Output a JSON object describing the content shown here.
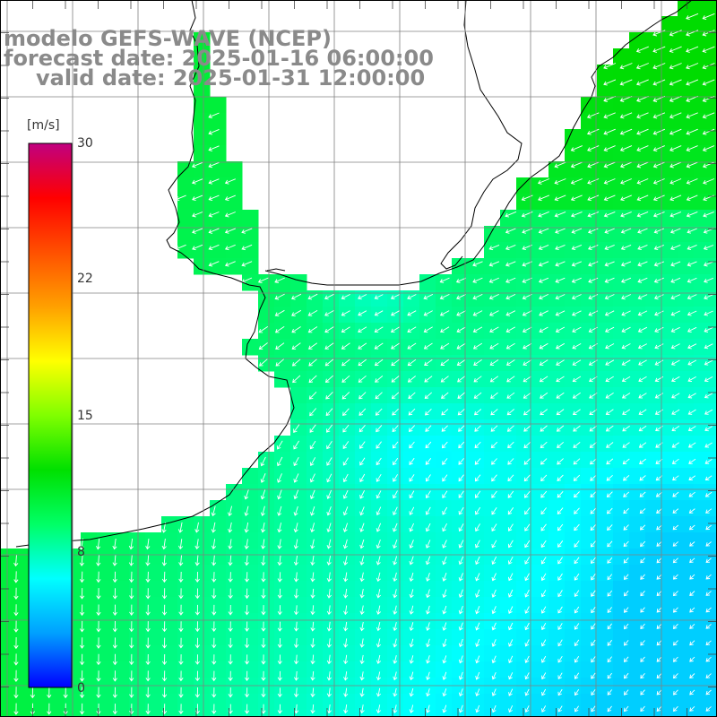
{
  "title": {
    "model": "modelo GEFS-WAVE (NCEP)",
    "forecast": "forecast date: 2025-01-16 06:00:00",
    "valid": "valid date: 2025-01-31 12:00:00"
  },
  "colorbar": {
    "unit": "[m/s]",
    "min": 0,
    "max": 30,
    "ticks": [
      "30",
      "22",
      "15",
      "8",
      "0"
    ],
    "tick_values": [
      30,
      22,
      15,
      8,
      0
    ],
    "colors": [
      "#0000ff",
      "#00a0ff",
      "#00ffff",
      "#00ff66",
      "#00e000",
      "#80ff00",
      "#ffff00",
      "#ffa000",
      "#ff5000",
      "#ff0000",
      "#c00080"
    ]
  },
  "map": {
    "land_color": "#ffffff",
    "coast_color": "#000000",
    "grid_color": "#808080",
    "arrow_color": "#ffffff"
  }
}
